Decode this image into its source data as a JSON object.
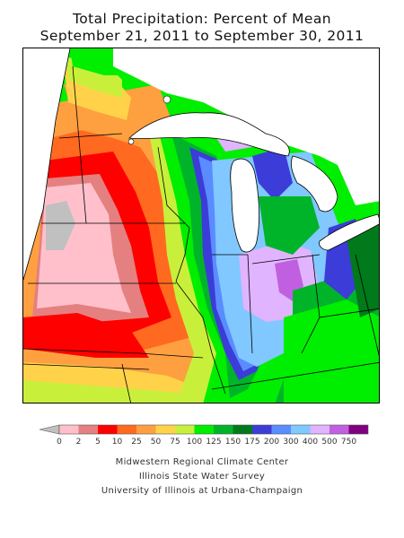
{
  "title": {
    "line1": "Total Precipitation: Percent of Mean",
    "line2": "September 21, 2011 to September 30, 2011"
  },
  "legend": {
    "labels": [
      "0",
      "2",
      "5",
      "10",
      "25",
      "50",
      "75",
      "100",
      "125",
      "150",
      "175",
      "200",
      "300",
      "400",
      "500",
      "750"
    ],
    "colors": [
      "#ffc0cb",
      "#e58080",
      "#ff0000",
      "#ff6a20",
      "#ffa040",
      "#ffd24a",
      "#c8f03a",
      "#00ee00",
      "#00b42a",
      "#007a1a",
      "#3c3cd8",
      "#5a8cff",
      "#80c8ff",
      "#e0b4ff",
      "#c060e0",
      "#800080"
    ],
    "below_color": "#c0c0c0"
  },
  "credits": {
    "line1": "Midwestern Regional Climate Center",
    "line2": "Illinois State Water Survey",
    "line3": "University of Illinois at Urbana-Champaign"
  }
}
